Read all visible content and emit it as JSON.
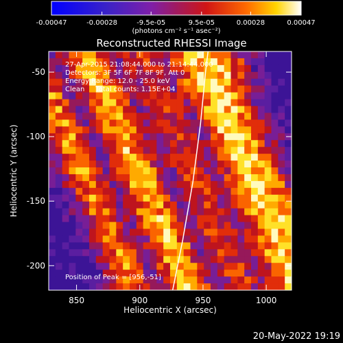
{
  "colorbar": {
    "ticks": [
      "-0.00047",
      "-0.00028",
      "-9.5e-05",
      "9.5e-05",
      "0.00028",
      "0.00047"
    ],
    "tick_values": [
      -0.00047,
      -0.00028,
      -9.5e-05,
      9.5e-05,
      0.00028,
      0.00047
    ],
    "range": [
      -0.00047,
      0.00047
    ],
    "units_label": "(photons cm⁻² s⁻¹ asec⁻²)",
    "colors": [
      "#0000ff",
      "#7f1fa8",
      "#c11818",
      "#ff6a00",
      "#ffd400",
      "#ffffff"
    ]
  },
  "chart_data": {
    "type": "heatmap",
    "title": "Reconstructed RHESSI Image",
    "xlabel": "Heliocentric X (arcsec)",
    "ylabel": "Heliocentric Y (arcsec)",
    "xlim": [
      828,
      1020
    ],
    "ylim": [
      -219,
      -34
    ],
    "x_ticks": [
      850,
      900,
      950,
      1000
    ],
    "y_ticks": [
      -50,
      -100,
      -150,
      -200
    ],
    "annotations": [
      "27-Apr-2015 21:08:44.000 to 21:14:44.000",
      "Detectors: 3F 5F 6F 7F 8F 9F, Att 0",
      "Energy Range: 12.0 - 25.0 keV",
      "Clean     Total counts: 1.15E+04"
    ],
    "peak_label": "Position of Peak = [956,-51]",
    "peak": [
      956,
      -51
    ],
    "limb_curve": [
      [
        926,
        -219
      ],
      [
        934,
        -180
      ],
      [
        942,
        -135
      ],
      [
        948,
        -90
      ],
      [
        952,
        -50
      ],
      [
        954,
        -34
      ]
    ]
  },
  "footer": {
    "timestamp": "20-May-2022 19:19"
  }
}
